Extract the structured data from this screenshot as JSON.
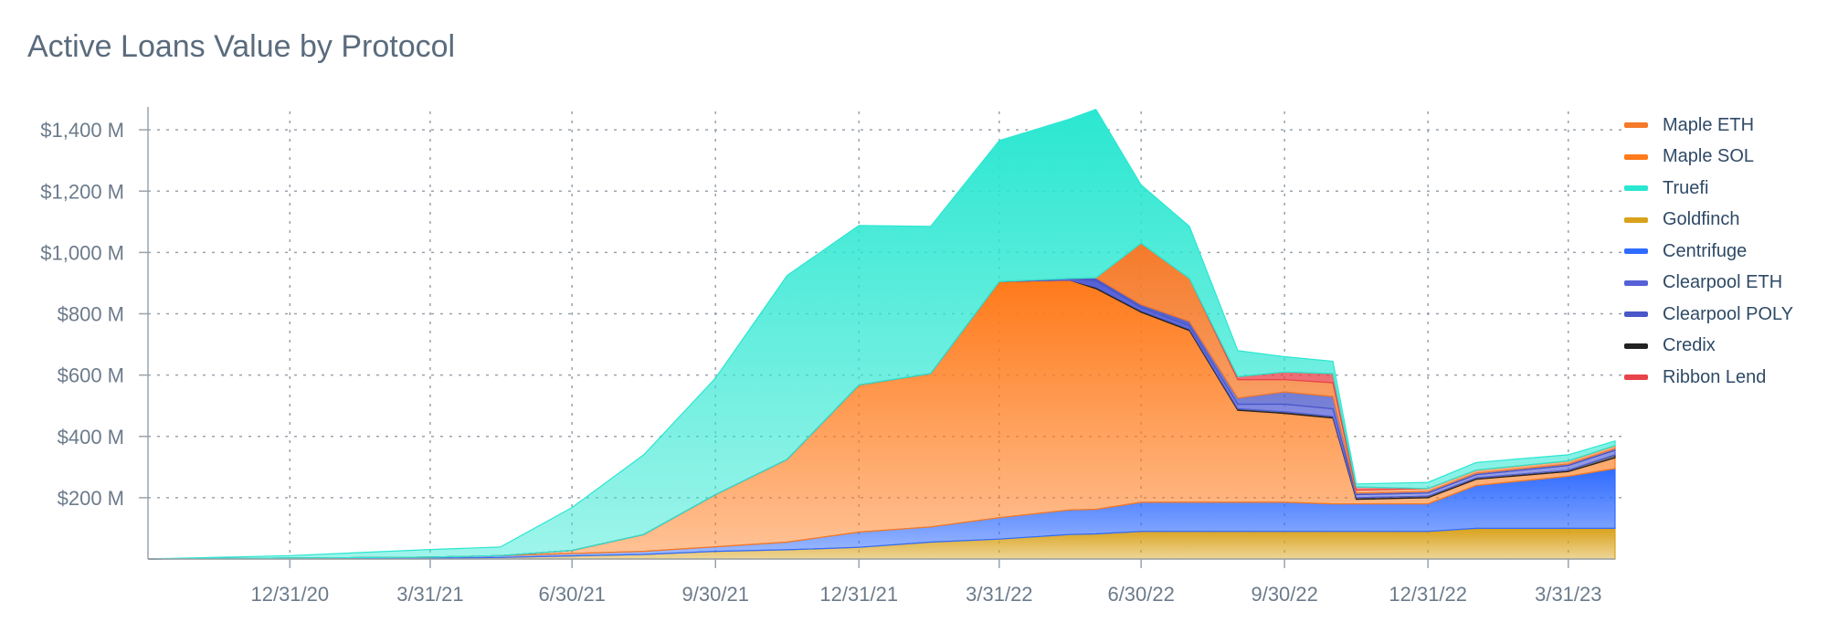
{
  "title": "Active Loans Value by Protocol",
  "chart_data": {
    "type": "area",
    "stacked": true,
    "title": "Active Loans Value by Protocol",
    "xlabel": "",
    "ylabel": "",
    "x_ticks": [
      "12/31/20",
      "3/31/21",
      "6/30/21",
      "9/30/21",
      "12/31/21",
      "3/31/22",
      "6/30/22",
      "9/30/22",
      "12/31/22",
      "3/31/23"
    ],
    "y_ticks": [
      "$200 M",
      "$400 M",
      "$600 M",
      "$800 M",
      "$1,000 M",
      "$1,200 M",
      "$1,400 M"
    ],
    "y_tick_values": [
      200,
      400,
      600,
      800,
      1000,
      1200,
      1400
    ],
    "ylim": [
      0,
      1460
    ],
    "xlim": [
      "2020-10-01",
      "2023-04-30"
    ],
    "y_unit": "$ M",
    "grid": true,
    "legend_position": "right",
    "x": [
      "2020-10-01",
      "2020-12-31",
      "2021-03-31",
      "2021-05-15",
      "2021-06-30",
      "2021-08-15",
      "2021-09-30",
      "2021-11-15",
      "2021-12-31",
      "2022-02-15",
      "2022-03-31",
      "2022-05-15",
      "2022-06-01",
      "2022-06-30",
      "2022-07-31",
      "2022-08-31",
      "2022-09-30",
      "2022-10-31",
      "2022-11-15",
      "2022-12-31",
      "2023-01-31",
      "2023-03-31",
      "2023-04-30"
    ],
    "series": [
      {
        "name": "Goldfinch",
        "color": "#d9a21b",
        "values": [
          0,
          1,
          2,
          5,
          10,
          15,
          25,
          30,
          38,
          55,
          65,
          80,
          82,
          90,
          90,
          90,
          90,
          90,
          90,
          90,
          100,
          100,
          100
        ]
      },
      {
        "name": "Centrifuge",
        "color": "#2f6bff",
        "values": [
          0,
          2,
          4,
          6,
          8,
          10,
          15,
          25,
          50,
          50,
          70,
          80,
          80,
          95,
          95,
          95,
          95,
          90,
          90,
          90,
          140,
          170,
          195
        ]
      },
      {
        "name": "Maple SOL",
        "color": "#ff7a1a",
        "values": [
          0,
          0,
          0,
          0,
          10,
          55,
          170,
          270,
          480,
          500,
          770,
          750,
          720,
          620,
          560,
          300,
          290,
          280,
          15,
          20,
          20,
          15,
          35
        ]
      },
      {
        "name": "Credix",
        "color": "#222222",
        "values": [
          0,
          0,
          0,
          0,
          0,
          0,
          0,
          0,
          0,
          0,
          0,
          0,
          5,
          5,
          5,
          5,
          5,
          5,
          5,
          5,
          5,
          5,
          10
        ]
      },
      {
        "name": "Clearpool ETH",
        "color": "#5560d6",
        "values": [
          0,
          0,
          0,
          0,
          0,
          0,
          0,
          0,
          0,
          0,
          0,
          5,
          20,
          10,
          10,
          15,
          25,
          25,
          10,
          10,
          10,
          15,
          15
        ]
      },
      {
        "name": "Clearpool POLY",
        "color": "#4a57c8",
        "values": [
          0,
          0,
          0,
          0,
          0,
          0,
          0,
          0,
          0,
          0,
          0,
          0,
          10,
          10,
          15,
          20,
          40,
          40,
          5,
          5,
          5,
          5,
          5
        ]
      },
      {
        "name": "Maple ETH",
        "color": "#f57a2a",
        "values": [
          0,
          0,
          0,
          0,
          0,
          0,
          0,
          0,
          0,
          0,
          0,
          0,
          0,
          200,
          140,
          60,
          40,
          45,
          10,
          10,
          10,
          10,
          10
        ]
      },
      {
        "name": "Ribbon Lend",
        "color": "#e8434a",
        "values": [
          0,
          0,
          0,
          0,
          0,
          0,
          0,
          0,
          0,
          0,
          0,
          0,
          0,
          0,
          0,
          10,
          25,
          30,
          10,
          0,
          0,
          0,
          0
        ]
      },
      {
        "name": "Truefi",
        "color": "#2ae7d1",
        "values": [
          0,
          8,
          25,
          28,
          140,
          260,
          380,
          600,
          520,
          480,
          460,
          520,
          550,
          190,
          170,
          85,
          50,
          40,
          10,
          20,
          25,
          20,
          15
        ]
      }
    ],
    "legend": [
      "Maple ETH",
      "Maple SOL",
      "Truefi",
      "Goldfinch",
      "Centrifuge",
      "Clearpool ETH",
      "Clearpool POLY",
      "Credix",
      "Ribbon Lend"
    ]
  }
}
